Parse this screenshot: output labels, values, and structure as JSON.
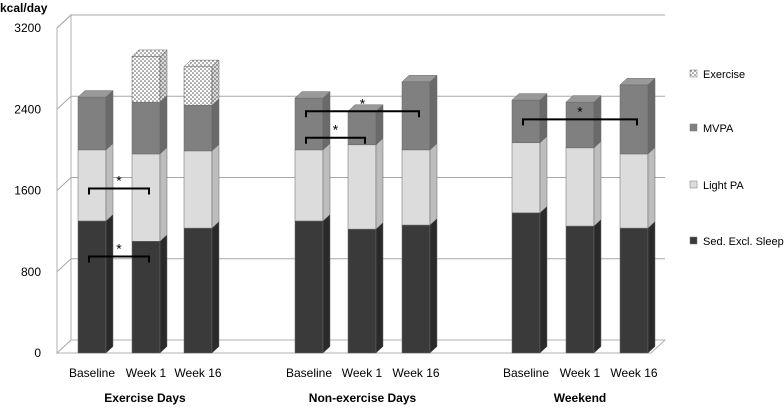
{
  "chart_data": {
    "type": "bar",
    "stacked": true,
    "three_d": true,
    "ylabel": "kcal/day",
    "ylim": [
      0,
      3200
    ],
    "yticks": [
      0,
      800,
      1600,
      2400,
      3200
    ],
    "grid": true,
    "legend_position": "right",
    "categories": [
      "Baseline",
      "Week 1",
      "Week 16",
      "Baseline",
      "Week 1",
      "Week 16",
      "Baseline",
      "Week 1",
      "Week 16"
    ],
    "groups": [
      {
        "label": "Exercise Days",
        "indices": [
          0,
          1,
          2
        ]
      },
      {
        "label": "Non-exercise Days",
        "indices": [
          3,
          4,
          5
        ]
      },
      {
        "label": "Weekend",
        "indices": [
          6,
          7,
          8
        ]
      }
    ],
    "series": [
      {
        "name": "Sed. Excl. Sleep",
        "color": "#3a3a3a",
        "values": [
          1300,
          1100,
          1230,
          1300,
          1220,
          1260,
          1380,
          1250,
          1230
        ]
      },
      {
        "name": "Light PA",
        "color": "#dcdcdc",
        "values": [
          700,
          860,
          760,
          700,
          830,
          740,
          690,
          770,
          730
        ]
      },
      {
        "name": "MVPA",
        "color": "#808080",
        "values": [
          520,
          510,
          450,
          510,
          330,
          670,
          420,
          450,
          680
        ]
      },
      {
        "name": "Exercise",
        "color": "#ffffff",
        "pattern": "dotted",
        "values": [
          0,
          450,
          380,
          0,
          0,
          0,
          0,
          0,
          0
        ]
      }
    ],
    "annotations": [
      {
        "text": "*",
        "from": 0,
        "to": 1,
        "level": 1620
      },
      {
        "text": "*",
        "from": 0,
        "to": 1,
        "level": 950
      },
      {
        "text": "*",
        "from": 3,
        "to": 5,
        "level": 2380
      },
      {
        "text": "*",
        "from": 3,
        "to": 4,
        "level": 2120
      },
      {
        "text": "*",
        "from": 6,
        "to": 8,
        "level": 2300
      }
    ]
  }
}
